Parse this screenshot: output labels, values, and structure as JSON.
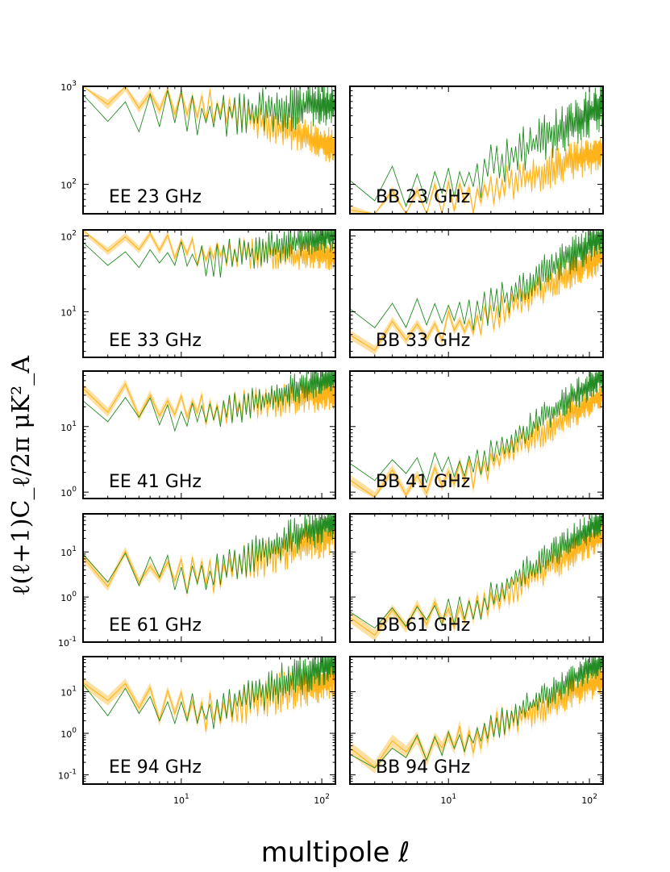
{
  "colors": {
    "green": "#228b22",
    "orange": "#ffb31a",
    "orange_band": "#ffcc66"
  },
  "chart_data": {
    "type": "line",
    "xscale": "log",
    "yscale": "log",
    "xlim": [
      2,
      125
    ],
    "xlabel": "multipole ℓ",
    "ylabel": "ℓ(ℓ+1)C_ℓ/2π μK²_A",
    "x_ticks": [
      {
        "value": 10,
        "base": "10",
        "exp": "1"
      },
      {
        "value": 100,
        "base": "10",
        "exp": "2"
      }
    ],
    "series_names": [
      "green",
      "orange"
    ],
    "rows": [
      {
        "freq": "23 GHz",
        "ylim": [
          50,
          1000
        ],
        "y_ticks": [
          {
            "value": 100,
            "base": "10",
            "exp": "2"
          },
          {
            "value": 1000,
            "base": "10",
            "exp": "3"
          }
        ],
        "panels": [
          {
            "label": "EE 23 GHz",
            "green": {
              "start": 600,
              "mid": 520,
              "end": 650,
              "jitter": 0.25
            },
            "orange": {
              "start": 950,
              "mid": 650,
              "end": 240,
              "jitter": 0.18,
              "band": 0.05
            }
          },
          {
            "label": "BB 23 GHz",
            "green": {
              "start": 80,
              "mid": 120,
              "end": 620,
              "jitter": 0.25
            },
            "orange": {
              "start": 45,
              "mid": 80,
              "end": 220,
              "jitter": 0.2,
              "band": 0.05
            }
          }
        ]
      },
      {
        "freq": "33 GHz",
        "ylim": [
          2.5,
          120
        ],
        "y_ticks": [
          {
            "value": 10,
            "base": "10",
            "exp": "1"
          },
          {
            "value": 100,
            "base": "10",
            "exp": "2"
          }
        ],
        "panels": [
          {
            "label": "EE 33 GHz",
            "green": {
              "start": 60,
              "mid": 45,
              "end": 110,
              "jitter": 0.25
            },
            "orange": {
              "start": 100,
              "mid": 60,
              "end": 55,
              "jitter": 0.2,
              "band": 0.05
            }
          },
          {
            "label": "BB 33 GHz",
            "green": {
              "start": 8,
              "mid": 9,
              "end": 100,
              "jitter": 0.25
            },
            "orange": {
              "start": 4,
              "mid": 7,
              "end": 55,
              "jitter": 0.22,
              "band": 0.06
            }
          }
        ]
      },
      {
        "freq": "41 GHz",
        "ylim": [
          0.8,
          70
        ],
        "y_ticks": [
          {
            "value": 1,
            "base": "10",
            "exp": "0"
          },
          {
            "value": 10,
            "base": "10",
            "exp": "1"
          }
        ],
        "panels": [
          {
            "label": "EE 41 GHz",
            "green": {
              "start": 18,
              "mid": 14,
              "end": 60,
              "jitter": 0.25
            },
            "orange": {
              "start": 30,
              "mid": 18,
              "end": 32,
              "jitter": 0.25,
              "band": 0.07
            }
          },
          {
            "label": "BB 41 GHz",
            "green": {
              "start": 2,
              "mid": 2.5,
              "end": 60,
              "jitter": 0.25
            },
            "orange": {
              "start": 1.2,
              "mid": 2,
              "end": 32,
              "jitter": 0.25,
              "band": 0.08
            }
          }
        ]
      },
      {
        "freq": "61 GHz",
        "ylim": [
          0.1,
          70
        ],
        "y_ticks": [
          {
            "value": 0.1,
            "base": "10",
            "exp": "-1"
          },
          {
            "value": 1,
            "base": "10",
            "exp": "0"
          },
          {
            "value": 10,
            "base": "10",
            "exp": "1"
          }
        ],
        "panels": [
          {
            "label": "EE 61 GHz",
            "green": {
              "start": 5,
              "mid": 3,
              "end": 55,
              "jitter": 0.45
            },
            "orange": {
              "start": 5,
              "mid": 3,
              "end": 25,
              "jitter": 0.45,
              "band": 0.1
            }
          },
          {
            "label": "BB 61 GHz",
            "green": {
              "start": 0.3,
              "mid": 0.6,
              "end": 55,
              "jitter": 0.35
            },
            "orange": {
              "start": 0.25,
              "mid": 0.5,
              "end": 25,
              "jitter": 0.35,
              "band": 0.12
            }
          }
        ]
      },
      {
        "freq": "94 GHz",
        "ylim": [
          0.06,
          70
        ],
        "y_ticks": [
          {
            "value": 0.1,
            "base": "10",
            "exp": "-1"
          },
          {
            "value": 1,
            "base": "10",
            "exp": "0"
          },
          {
            "value": 10,
            "base": "10",
            "exp": "1"
          }
        ],
        "panels": [
          {
            "label": "EE 94 GHz",
            "green": {
              "start": 8,
              "mid": 3,
              "end": 55,
              "jitter": 0.5
            },
            "orange": {
              "start": 10,
              "mid": 3,
              "end": 22,
              "jitter": 0.5,
              "band": 0.12
            }
          },
          {
            "label": "BB 94 GHz",
            "green": {
              "start": 0.2,
              "mid": 0.8,
              "end": 55,
              "jitter": 0.35
            },
            "orange": {
              "start": 0.3,
              "mid": 0.8,
              "end": 22,
              "jitter": 0.4,
              "band": 0.15
            }
          }
        ]
      }
    ]
  }
}
